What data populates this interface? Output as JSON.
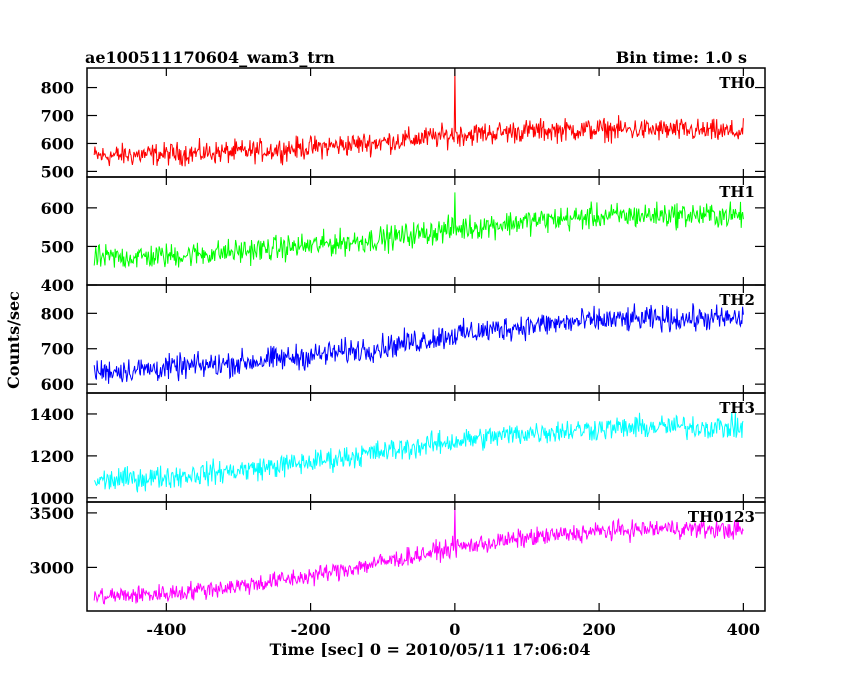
{
  "header": {
    "title": "ae100511170604_wam3_trn",
    "bin_time": "Bin time: 1.0 s"
  },
  "y_axis_label": "Counts/sec",
  "x_axis_label": "Time [sec] 0 = 2010/05/11 17:06:04",
  "chart_data": {
    "type": "line",
    "title": "ae100511170604_wam3_trn",
    "xlabel": "Time [sec] 0 = 2010/05/11 17:06:04",
    "ylabel": "Counts/sec",
    "xlim": [
      -510,
      430
    ],
    "x_ticks": [
      -400,
      -200,
      0,
      200,
      400
    ],
    "bin_time_s": 1.0,
    "panels": [
      {
        "name": "TH0",
        "color": "#ff0000",
        "ylim": [
          480,
          870
        ],
        "y_ticks": [
          500,
          600,
          700,
          800
        ],
        "x_range": [
          -500,
          400
        ],
        "trend_x": [
          -500,
          -400,
          -300,
          -200,
          -100,
          0,
          100,
          200,
          300,
          400
        ],
        "trend_y": [
          555,
          562,
          570,
          585,
          605,
          630,
          645,
          650,
          648,
          640
        ],
        "noise_amplitude": 40,
        "spikes": [
          {
            "x": 0,
            "y": 865
          }
        ]
      },
      {
        "name": "TH1",
        "color": "#00ff00",
        "ylim": [
          400,
          680
        ],
        "y_ticks": [
          400,
          500,
          600
        ],
        "x_range": [
          -500,
          400
        ],
        "trend_x": [
          -500,
          -400,
          -300,
          -200,
          -100,
          0,
          100,
          200,
          300,
          400
        ],
        "trend_y": [
          470,
          475,
          487,
          502,
          520,
          545,
          565,
          578,
          582,
          580
        ],
        "noise_amplitude": 32,
        "spikes": [
          {
            "x": 0,
            "y": 640
          }
        ]
      },
      {
        "name": "TH2",
        "color": "#0000ff",
        "ylim": [
          575,
          880
        ],
        "y_ticks": [
          600,
          700,
          800
        ],
        "x_range": [
          -500,
          400
        ],
        "trend_x": [
          -500,
          -400,
          -300,
          -200,
          -100,
          0,
          100,
          200,
          300,
          400
        ],
        "trend_y": [
          635,
          645,
          660,
          680,
          705,
          740,
          765,
          780,
          785,
          785
        ],
        "noise_amplitude": 35,
        "spikes": []
      },
      {
        "name": "TH3",
        "color": "#00ffff",
        "ylim": [
          980,
          1500
        ],
        "y_ticks": [
          1000,
          1200,
          1400
        ],
        "x_range": [
          -500,
          400
        ],
        "trend_x": [
          -500,
          -400,
          -300,
          -200,
          -100,
          0,
          100,
          200,
          300,
          400
        ],
        "trend_y": [
          1080,
          1100,
          1130,
          1170,
          1220,
          1270,
          1310,
          1330,
          1340,
          1335
        ],
        "noise_amplitude": 55,
        "spikes": []
      },
      {
        "name": "TH0123",
        "color": "#ff00ff",
        "ylim": [
          2600,
          3600
        ],
        "y_ticks": [
          3000,
          3500
        ],
        "x_range": [
          -500,
          400
        ],
        "trend_x": [
          -500,
          -400,
          -300,
          -200,
          -100,
          0,
          100,
          200,
          300,
          400
        ],
        "trend_y": [
          2730,
          2760,
          2830,
          2920,
          3050,
          3180,
          3270,
          3330,
          3360,
          3340
        ],
        "noise_amplitude": 85,
        "spikes": [
          {
            "x": 0,
            "y": 3560
          }
        ]
      }
    ]
  }
}
